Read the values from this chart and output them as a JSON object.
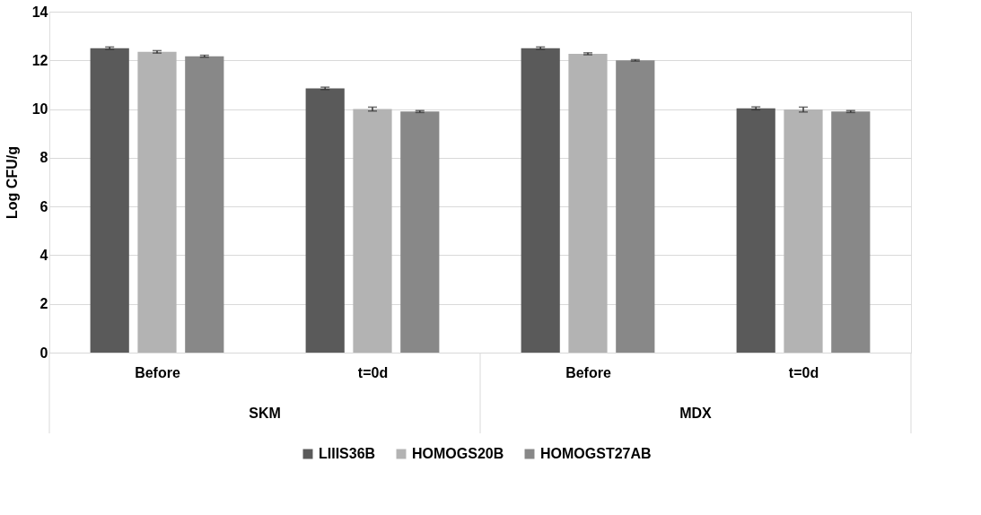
{
  "chart_data": {
    "type": "bar",
    "ylabel": "Log CFU/g",
    "categories": [
      "Before",
      "t=0d",
      "Before",
      "t=0d"
    ],
    "series": [
      {
        "name": "LIIIS36B",
        "color": "#5a5a5a",
        "values": [
          12.5,
          10.85,
          12.5,
          10.03
        ],
        "errors": [
          0.05,
          0.05,
          0.05,
          0.06
        ]
      },
      {
        "name": "HOMOGS20B",
        "color": "#b3b3b3",
        "values": [
          12.35,
          10.0,
          12.27,
          9.98
        ],
        "errors": [
          0.05,
          0.08,
          0.04,
          0.1
        ]
      },
      {
        "name": "HOMOGST27AB",
        "color": "#888888",
        "values": [
          12.17,
          9.9,
          12.0,
          9.9
        ],
        "errors": [
          0.04,
          0.04,
          0.03,
          0.04
        ]
      }
    ],
    "annotations": [
      "SKM",
      "MDX"
    ],
    "ylim": [
      0,
      14
    ],
    "yticks": [
      0,
      2,
      4,
      6,
      8,
      10,
      12,
      14
    ],
    "grid": "y",
    "legend": "bottom"
  }
}
